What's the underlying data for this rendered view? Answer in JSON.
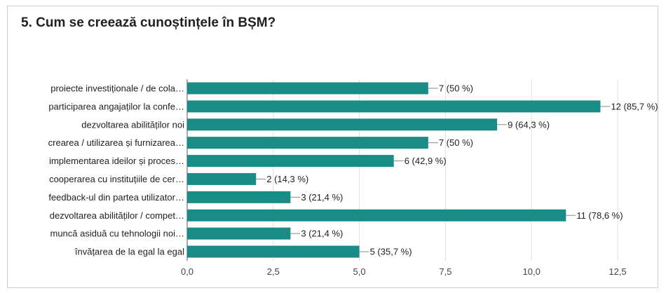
{
  "question_title": "5. Cum se creează cunoștințele în BȘM?",
  "chart_data": {
    "type": "bar",
    "orientation": "horizontal",
    "title": "5. Cum se creează cunoștințele în BȘM?",
    "categories": [
      "proiecte investiționale / de cola…",
      "participarea angajaților la confe…",
      "dezvoltarea abilităților noi",
      "crearea / utilizarea și furnizarea…",
      "implementarea ideilor și proces…",
      "cooperarea cu instituțiile de cer…",
      "feedback-ul din partea utilizator…",
      "dezvoltarea abilităților / compet…",
      "muncă asiduă cu tehnologii noi…",
      "învățarea de la egal la egal"
    ],
    "values": [
      7,
      12,
      9,
      7,
      6,
      2,
      3,
      11,
      3,
      5
    ],
    "value_labels": [
      "7 (50 %)",
      "12 (85,7 %)",
      "9 (64,3 %)",
      "7 (50 %)",
      "6 (42,9 %)",
      "2 (14,3 %)",
      "3 (21,4 %)",
      "11 (78,6 %)",
      "3 (21,4 %)",
      "5 (35,7 %)"
    ],
    "xlim": [
      0,
      12.5
    ],
    "x_ticks": [
      0,
      2.5,
      5,
      7.5,
      10,
      12.5
    ],
    "x_tick_labels": [
      "0,0",
      "2,5",
      "5,0",
      "7,5",
      "10,0",
      "12,5"
    ],
    "grid": true,
    "bar_color": "#198C88",
    "gridline_color": "#e0e0e0",
    "xlabel": "",
    "ylabel": ""
  }
}
